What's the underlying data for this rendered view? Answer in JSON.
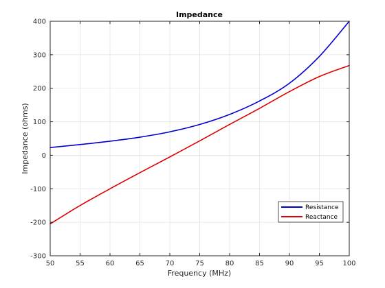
{
  "chart_data": {
    "type": "line",
    "title": "Impedance",
    "xlabel": "Frequency (MHz)",
    "ylabel": "Impedance (ohms)",
    "xlim": [
      50,
      100
    ],
    "ylim": [
      -300,
      400
    ],
    "xticks": [
      50,
      55,
      60,
      65,
      70,
      75,
      80,
      85,
      90,
      95,
      100
    ],
    "yticks": [
      -300,
      -200,
      -100,
      0,
      100,
      200,
      300,
      400
    ],
    "grid": true,
    "legend_position": "bottom-right",
    "x": [
      50,
      55,
      60,
      65,
      70,
      75,
      80,
      85,
      90,
      95,
      100
    ],
    "series": [
      {
        "name": "Resistance",
        "color": "#0000cc",
        "values": [
          23,
          32,
          42,
          54,
          70,
          92,
          122,
          162,
          215,
          295,
          400
        ]
      },
      {
        "name": "Reactance",
        "color": "#dd0000",
        "values": [
          -205,
          -150,
          -100,
          -52,
          -5,
          43,
          92,
          140,
          190,
          235,
          268
        ]
      }
    ]
  }
}
